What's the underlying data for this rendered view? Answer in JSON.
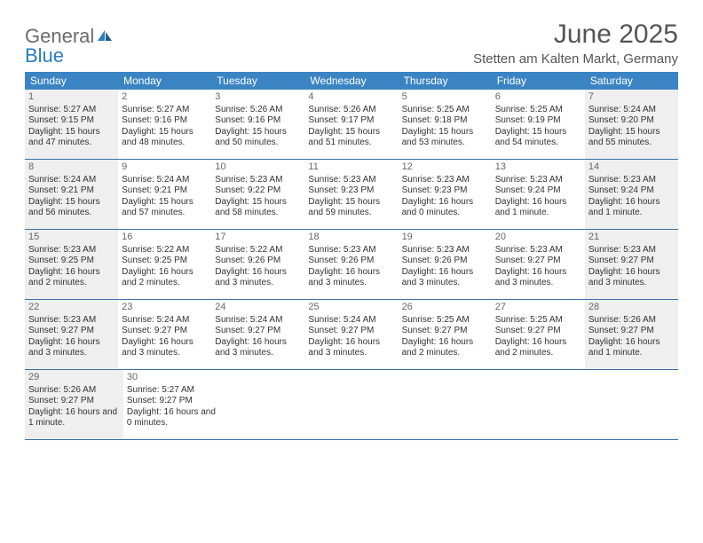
{
  "logo": {
    "text1": "General",
    "text2": "Blue"
  },
  "title": "June 2025",
  "location": "Stetten am Kalten Markt, Germany",
  "colors": {
    "header_bg": "#3b84c4",
    "header_text": "#ffffff",
    "rule": "#3b6fa5",
    "shaded": "#efefef",
    "body_text": "#333333",
    "muted_text": "#666666",
    "logo_gray": "#6b6b6b",
    "logo_blue": "#2a7dc0"
  },
  "weekdays": [
    "Sunday",
    "Monday",
    "Tuesday",
    "Wednesday",
    "Thursday",
    "Friday",
    "Saturday"
  ],
  "weeks": [
    [
      {
        "num": "1",
        "shaded": true,
        "sunrise": "Sunrise: 5:27 AM",
        "sunset": "Sunset: 9:15 PM",
        "daylight": "Daylight: 15 hours and 47 minutes."
      },
      {
        "num": "2",
        "sunrise": "Sunrise: 5:27 AM",
        "sunset": "Sunset: 9:16 PM",
        "daylight": "Daylight: 15 hours and 48 minutes."
      },
      {
        "num": "3",
        "sunrise": "Sunrise: 5:26 AM",
        "sunset": "Sunset: 9:16 PM",
        "daylight": "Daylight: 15 hours and 50 minutes."
      },
      {
        "num": "4",
        "sunrise": "Sunrise: 5:26 AM",
        "sunset": "Sunset: 9:17 PM",
        "daylight": "Daylight: 15 hours and 51 minutes."
      },
      {
        "num": "5",
        "sunrise": "Sunrise: 5:25 AM",
        "sunset": "Sunset: 9:18 PM",
        "daylight": "Daylight: 15 hours and 53 minutes."
      },
      {
        "num": "6",
        "sunrise": "Sunrise: 5:25 AM",
        "sunset": "Sunset: 9:19 PM",
        "daylight": "Daylight: 15 hours and 54 minutes."
      },
      {
        "num": "7",
        "shaded": true,
        "sunrise": "Sunrise: 5:24 AM",
        "sunset": "Sunset: 9:20 PM",
        "daylight": "Daylight: 15 hours and 55 minutes."
      }
    ],
    [
      {
        "num": "8",
        "shaded": true,
        "sunrise": "Sunrise: 5:24 AM",
        "sunset": "Sunset: 9:21 PM",
        "daylight": "Daylight: 15 hours and 56 minutes."
      },
      {
        "num": "9",
        "sunrise": "Sunrise: 5:24 AM",
        "sunset": "Sunset: 9:21 PM",
        "daylight": "Daylight: 15 hours and 57 minutes."
      },
      {
        "num": "10",
        "sunrise": "Sunrise: 5:23 AM",
        "sunset": "Sunset: 9:22 PM",
        "daylight": "Daylight: 15 hours and 58 minutes."
      },
      {
        "num": "11",
        "sunrise": "Sunrise: 5:23 AM",
        "sunset": "Sunset: 9:23 PM",
        "daylight": "Daylight: 15 hours and 59 minutes."
      },
      {
        "num": "12",
        "sunrise": "Sunrise: 5:23 AM",
        "sunset": "Sunset: 9:23 PM",
        "daylight": "Daylight: 16 hours and 0 minutes."
      },
      {
        "num": "13",
        "sunrise": "Sunrise: 5:23 AM",
        "sunset": "Sunset: 9:24 PM",
        "daylight": "Daylight: 16 hours and 1 minute."
      },
      {
        "num": "14",
        "shaded": true,
        "sunrise": "Sunrise: 5:23 AM",
        "sunset": "Sunset: 9:24 PM",
        "daylight": "Daylight: 16 hours and 1 minute."
      }
    ],
    [
      {
        "num": "15",
        "shaded": true,
        "sunrise": "Sunrise: 5:23 AM",
        "sunset": "Sunset: 9:25 PM",
        "daylight": "Daylight: 16 hours and 2 minutes."
      },
      {
        "num": "16",
        "sunrise": "Sunrise: 5:22 AM",
        "sunset": "Sunset: 9:25 PM",
        "daylight": "Daylight: 16 hours and 2 minutes."
      },
      {
        "num": "17",
        "sunrise": "Sunrise: 5:22 AM",
        "sunset": "Sunset: 9:26 PM",
        "daylight": "Daylight: 16 hours and 3 minutes."
      },
      {
        "num": "18",
        "sunrise": "Sunrise: 5:23 AM",
        "sunset": "Sunset: 9:26 PM",
        "daylight": "Daylight: 16 hours and 3 minutes."
      },
      {
        "num": "19",
        "sunrise": "Sunrise: 5:23 AM",
        "sunset": "Sunset: 9:26 PM",
        "daylight": "Daylight: 16 hours and 3 minutes."
      },
      {
        "num": "20",
        "sunrise": "Sunrise: 5:23 AM",
        "sunset": "Sunset: 9:27 PM",
        "daylight": "Daylight: 16 hours and 3 minutes."
      },
      {
        "num": "21",
        "shaded": true,
        "sunrise": "Sunrise: 5:23 AM",
        "sunset": "Sunset: 9:27 PM",
        "daylight": "Daylight: 16 hours and 3 minutes."
      }
    ],
    [
      {
        "num": "22",
        "shaded": true,
        "sunrise": "Sunrise: 5:23 AM",
        "sunset": "Sunset: 9:27 PM",
        "daylight": "Daylight: 16 hours and 3 minutes."
      },
      {
        "num": "23",
        "sunrise": "Sunrise: 5:24 AM",
        "sunset": "Sunset: 9:27 PM",
        "daylight": "Daylight: 16 hours and 3 minutes."
      },
      {
        "num": "24",
        "sunrise": "Sunrise: 5:24 AM",
        "sunset": "Sunset: 9:27 PM",
        "daylight": "Daylight: 16 hours and 3 minutes."
      },
      {
        "num": "25",
        "sunrise": "Sunrise: 5:24 AM",
        "sunset": "Sunset: 9:27 PM",
        "daylight": "Daylight: 16 hours and 3 minutes."
      },
      {
        "num": "26",
        "sunrise": "Sunrise: 5:25 AM",
        "sunset": "Sunset: 9:27 PM",
        "daylight": "Daylight: 16 hours and 2 minutes."
      },
      {
        "num": "27",
        "sunrise": "Sunrise: 5:25 AM",
        "sunset": "Sunset: 9:27 PM",
        "daylight": "Daylight: 16 hours and 2 minutes."
      },
      {
        "num": "28",
        "shaded": true,
        "sunrise": "Sunrise: 5:26 AM",
        "sunset": "Sunset: 9:27 PM",
        "daylight": "Daylight: 16 hours and 1 minute."
      }
    ],
    [
      {
        "num": "29",
        "shaded": true,
        "sunrise": "Sunrise: 5:26 AM",
        "sunset": "Sunset: 9:27 PM",
        "daylight": "Daylight: 16 hours and 1 minute."
      },
      {
        "num": "30",
        "sunrise": "Sunrise: 5:27 AM",
        "sunset": "Sunset: 9:27 PM",
        "daylight": "Daylight: 16 hours and 0 minutes."
      },
      null,
      null,
      null,
      null,
      null
    ]
  ]
}
